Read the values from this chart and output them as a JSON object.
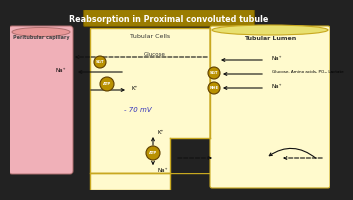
{
  "title": "Reabsorption in Proximal convoluted tubule",
  "title_bg": "#9a7c00",
  "title_color": "white",
  "bg_color": "#222222",
  "peritubular_color": "#f0b0b8",
  "peritubular_ellipse": "#e89098",
  "cell_color": "#fffacd",
  "lumen_color": "#fffacd",
  "lumen_cylinder_color": "#f0e870",
  "atp_color": "#b89000",
  "border_color": "#c8a820",
  "peritubular_label": "Peritubular capillary",
  "tubular_cells_label": "Tubular Cells",
  "tubular_lumen_label": "Tubular Lumen",
  "mv_label": "- 70 mV",
  "glucose_label": "Glucose",
  "na_label": "Na⁺",
  "k_label": "K⁺",
  "cotransport_label": "Glucose, Amino acids, PO₄, Lactate",
  "label_color": "#333333",
  "arrow_color": "#111111"
}
